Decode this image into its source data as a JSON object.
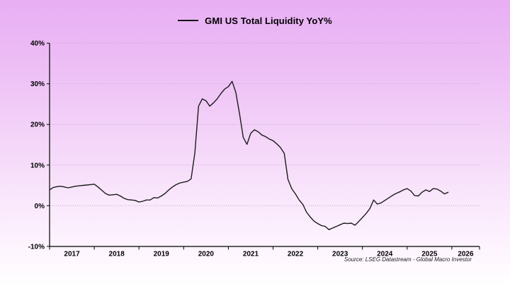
{
  "header": {
    "title": "GMI US Total Liquidity YoY%",
    "legend_marker": "line-icon"
  },
  "source_note": "Source: LSEG Datastream - Global Macro Investor",
  "colors": {
    "background_top": "#e8aff3",
    "background_bottom": "#ffffff",
    "line": "#1c1c1c",
    "grid": "#c0abc8",
    "axis": "#000000",
    "text": "#000000"
  },
  "chart_data": {
    "type": "line",
    "title": "GMI US Total Liquidity YoY%",
    "xlabel": "",
    "ylabel": "",
    "ylim": [
      -10,
      40
    ],
    "yticks": [
      -10,
      0,
      10,
      20,
      30,
      40
    ],
    "ytick_labels": [
      "-10%",
      "0%",
      "10%",
      "20%",
      "30%",
      "40%"
    ],
    "xtick_labels": [
      "2017",
      "2018",
      "2019",
      "2020",
      "2021",
      "2022",
      "2023",
      "2024",
      "2025",
      "2026"
    ],
    "x_start": "2017-01",
    "x_frequency": "monthly",
    "grid": "horizontal-dotted",
    "legend_position": "top-center",
    "series": [
      {
        "name": "GMI US Total Liquidity YoY%",
        "color": "#1c1c1c",
        "values": [
          3.9,
          4.5,
          4.7,
          4.8,
          4.6,
          4.4,
          4.6,
          4.8,
          4.9,
          5.0,
          5.1,
          5.2,
          5.3,
          4.6,
          3.8,
          3.0,
          2.6,
          2.7,
          2.8,
          2.4,
          1.8,
          1.5,
          1.4,
          1.3,
          0.9,
          1.1,
          1.4,
          1.4,
          2.0,
          1.9,
          2.4,
          3.0,
          3.9,
          4.6,
          5.2,
          5.6,
          5.8,
          6.0,
          6.6,
          13.0,
          24.5,
          26.3,
          25.8,
          24.5,
          25.3,
          26.3,
          27.6,
          28.7,
          29.3,
          30.6,
          27.9,
          22.6,
          16.8,
          15.1,
          17.8,
          18.7,
          18.2,
          17.4,
          17.0,
          16.4,
          16.0,
          15.2,
          14.3,
          12.9,
          6.5,
          4.2,
          2.9,
          1.4,
          0.3,
          -1.6,
          -2.8,
          -3.8,
          -4.4,
          -4.9,
          -5.1,
          -5.9,
          -5.5,
          -5.1,
          -4.7,
          -4.3,
          -4.4,
          -4.3,
          -4.8,
          -3.9,
          -2.9,
          -1.9,
          -0.7,
          1.4,
          0.4,
          0.7,
          1.3,
          1.9,
          2.5,
          3.0,
          3.4,
          3.9,
          4.2,
          3.6,
          2.5,
          2.4,
          3.3,
          3.9,
          3.5,
          4.2,
          4.1,
          3.6,
          2.9,
          3.3
        ]
      }
    ]
  }
}
